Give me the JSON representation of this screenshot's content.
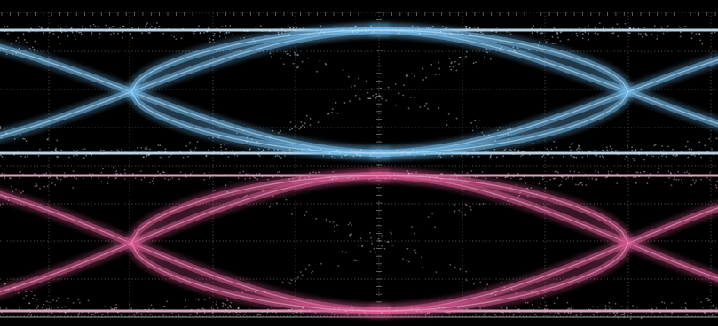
{
  "display": {
    "background": "#000000",
    "grid_color": "#8a8a8a",
    "graticule": {
      "divisions_x": 10,
      "divisions_y": 8,
      "style": "dotted"
    }
  },
  "traces": [
    {
      "id": "channel-1",
      "color": "#6fb7e6",
      "core_color": "#cfe9fb"
    },
    {
      "id": "channel-2",
      "color": "#d4578e",
      "core_color": "#f0b3cf"
    }
  ]
}
